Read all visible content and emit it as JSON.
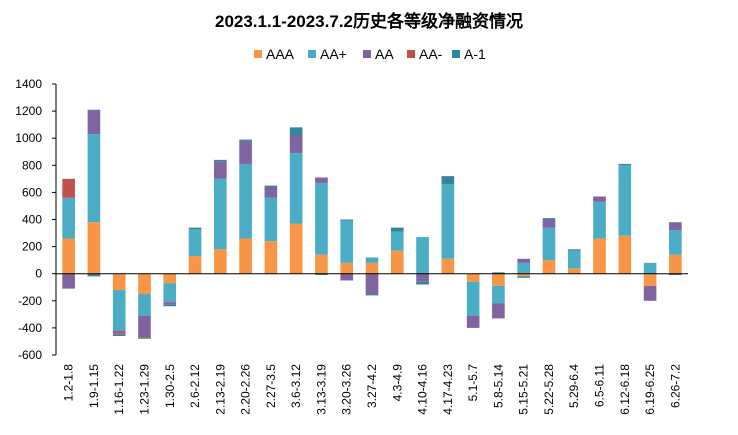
{
  "chart_data": {
    "type": "bar",
    "stacked": true,
    "title": "2023.1.1-2023.7.2历史各等级净融资情况",
    "legend_position": "top",
    "grid": false,
    "ylim": [
      -600,
      1400
    ],
    "yticks": [
      -600,
      -400,
      -200,
      0,
      200,
      400,
      600,
      800,
      1000,
      1200,
      1400
    ],
    "categories": [
      "1.2-1.8",
      "1.9-1.15",
      "1.16-1.22",
      "1.23-1.29",
      "1.30-2.5",
      "2.6-2.12",
      "2.13-2.19",
      "2.20-2.26",
      "2.27-3.5",
      "3.6-3.12",
      "3.13-3.19",
      "3.20-3.26",
      "3.27-4.2",
      "4.3-4.9",
      "4.10-4.16",
      "4.17-4.23",
      "5.1-5.7",
      "5.8-5.14",
      "5.15-5.21",
      "5.22-5.28",
      "5.29-6.4",
      "6.5-6.11",
      "6.12-6.18",
      "6.19-6.25",
      "6.26-7.2"
    ],
    "series": [
      {
        "name": "AAA",
        "color": "#F79646",
        "values": [
          260,
          380,
          -120,
          -150,
          -70,
          130,
          180,
          260,
          240,
          370,
          140,
          80,
          80,
          170,
          0,
          110,
          -60,
          -90,
          -20,
          100,
          40,
          260,
          280,
          -90,
          140
        ]
      },
      {
        "name": "AA+",
        "color": "#4BACC6",
        "values": [
          300,
          650,
          -300,
          -160,
          -140,
          200,
          520,
          550,
          320,
          520,
          530,
          310,
          40,
          140,
          270,
          550,
          -250,
          -130,
          80,
          240,
          130,
          270,
          520,
          80,
          180
        ]
      },
      {
        "name": "AA",
        "color": "#8064A2",
        "values": [
          -110,
          180,
          -20,
          -150,
          -20,
          0,
          130,
          170,
          80,
          130,
          40,
          -50,
          -150,
          0,
          -60,
          0,
          -90,
          -110,
          30,
          60,
          0,
          40,
          0,
          -110,
          60
        ]
      },
      {
        "name": "AA-",
        "color": "#C0504D",
        "values": [
          140,
          0,
          -10,
          -10,
          0,
          0,
          0,
          0,
          0,
          0,
          0,
          0,
          0,
          0,
          0,
          0,
          0,
          0,
          0,
          0,
          0,
          0,
          0,
          0,
          0
        ]
      },
      {
        "name": "A-1",
        "color": "#31859C",
        "values": [
          0,
          -20,
          -10,
          -10,
          -10,
          10,
          10,
          10,
          10,
          60,
          -10,
          10,
          -10,
          30,
          -20,
          60,
          0,
          10,
          -10,
          10,
          10,
          0,
          10,
          0,
          -10
        ]
      }
    ]
  }
}
